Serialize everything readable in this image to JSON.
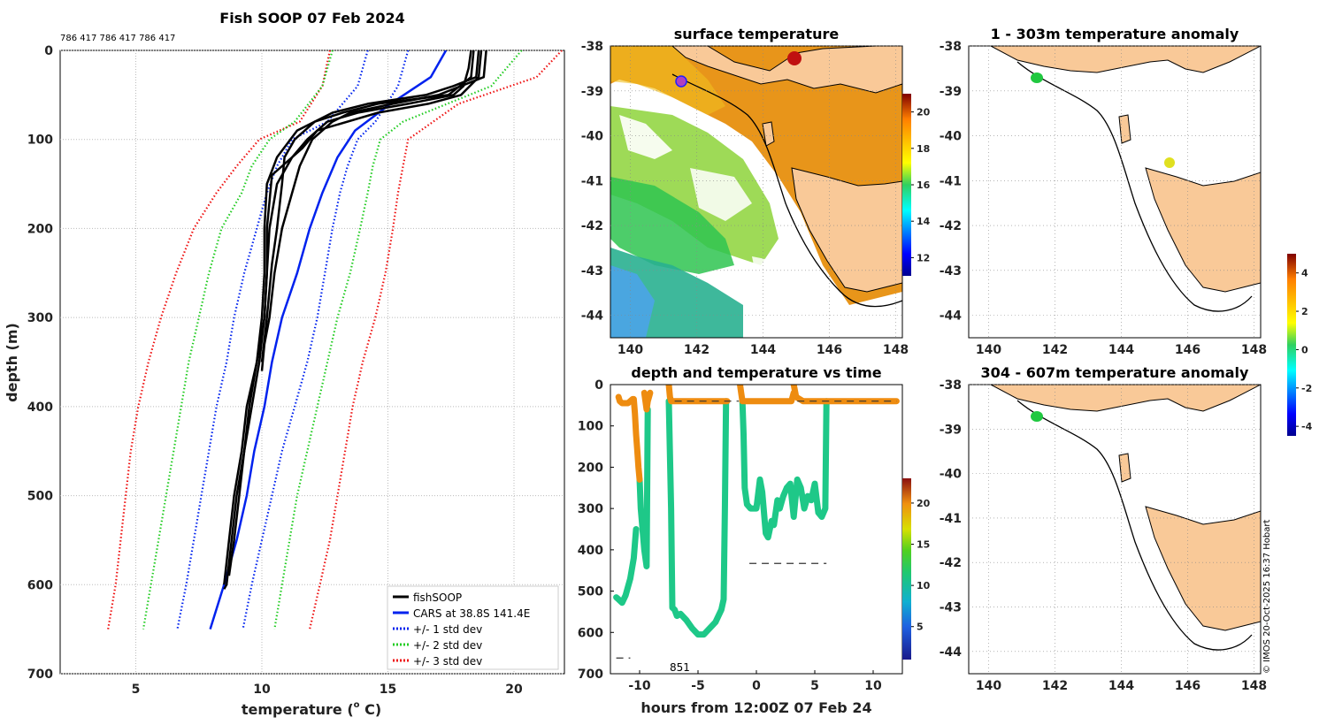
{
  "colors": {
    "fish": "#000000",
    "cars": "#0022ee",
    "std1": "#0022ee",
    "std2": "#22cc22",
    "std3": "#ee1111",
    "land": "#f9c998",
    "warm_sst": "#e8951a",
    "track_orange": "#ee8c10",
    "track_green": "#1ec888"
  },
  "chart_data": [
    {
      "id": "profile",
      "type": "line",
      "title": "Fish SOOP 07 Feb 2024",
      "header_ids": "786 417 786 417 786 417",
      "xlabel": "temperature (",
      "xlabel_sup": "o",
      "xlabel_unit": " C)",
      "ylabel": "depth (m)",
      "xlim": [
        2,
        22
      ],
      "ylim": [
        700,
        0
      ],
      "xticks": [
        "5",
        "10",
        "15",
        "20"
      ],
      "yticks": [
        "0",
        "100",
        "200",
        "300",
        "400",
        "500",
        "600",
        "700"
      ],
      "legend": [
        "fishSOOP",
        "CARS at 38.8S 141.4E",
        "+/- 1 std dev",
        "+/- 2 std dev",
        "+/- 3 std dev"
      ],
      "cars_mean": {
        "d": [
          0,
          30,
          60,
          90,
          120,
          160,
          200,
          250,
          300,
          350,
          400,
          450,
          500,
          550,
          600,
          650
        ],
        "t": [
          17.3,
          16.7,
          15.1,
          13.7,
          13.0,
          12.4,
          11.9,
          11.4,
          10.8,
          10.4,
          10.1,
          9.7,
          9.4,
          9.0,
          8.5,
          7.95
        ]
      },
      "std1_minus": {
        "d": [
          0,
          40,
          80,
          100,
          130,
          160,
          200,
          250,
          300,
          350,
          400,
          450,
          500,
          550,
          600,
          650
        ],
        "t": [
          14.2,
          13.8,
          12.6,
          11.2,
          10.6,
          10.2,
          9.8,
          9.3,
          8.9,
          8.6,
          8.2,
          7.9,
          7.6,
          7.3,
          7.0,
          6.65
        ]
      },
      "std1_plus": {
        "d": [
          0,
          40,
          80,
          100,
          130,
          160,
          200,
          250,
          300,
          350,
          400,
          450,
          500,
          550,
          600,
          650
        ],
        "t": [
          15.8,
          15.4,
          14.5,
          13.8,
          13.4,
          13.1,
          12.8,
          12.5,
          12.2,
          11.8,
          11.3,
          10.8,
          10.4,
          10.0,
          9.6,
          9.25
        ]
      },
      "std2_minus": {
        "d": [
          0,
          40,
          80,
          100,
          130,
          160,
          200,
          250,
          300,
          350,
          400,
          450,
          500,
          550,
          600,
          650
        ],
        "t": [
          12.8,
          12.4,
          11.3,
          10.3,
          9.6,
          9.2,
          8.4,
          7.9,
          7.5,
          7.1,
          6.8,
          6.5,
          6.2,
          5.9,
          5.6,
          5.3
        ]
      },
      "std2_plus": {
        "d": [
          0,
          40,
          80,
          100,
          130,
          160,
          200,
          250,
          300,
          350,
          400,
          450,
          500,
          550,
          600,
          650
        ],
        "t": [
          20.3,
          19.1,
          15.6,
          14.7,
          14.4,
          14.2,
          13.9,
          13.5,
          13.0,
          12.6,
          12.2,
          11.8,
          11.4,
          11.1,
          10.8,
          10.5
        ]
      },
      "std3_minus": {
        "d": [
          0,
          40,
          80,
          100,
          130,
          160,
          200,
          250,
          300,
          350,
          400,
          450,
          500,
          550,
          600,
          650
        ],
        "t": [
          12.7,
          12.4,
          11.5,
          9.9,
          9.0,
          8.2,
          7.3,
          6.6,
          6.0,
          5.5,
          5.1,
          4.8,
          4.6,
          4.4,
          4.2,
          3.9
        ]
      },
      "std3_plus": {
        "d": [
          0,
          30,
          60,
          90,
          100,
          130,
          160,
          200,
          250,
          300,
          350,
          400,
          450,
          500,
          550,
          600,
          650
        ],
        "t": [
          21.9,
          20.9,
          17.8,
          16.3,
          15.8,
          15.6,
          15.4,
          15.2,
          14.9,
          14.5,
          14.0,
          13.6,
          13.3,
          13.0,
          12.7,
          12.3,
          11.9
        ]
      },
      "fish_profiles": [
        {
          "d": [
            0,
            30,
            40,
            50,
            60,
            70,
            90,
            120,
            150,
            200,
            250,
            300,
            350,
            400,
            450,
            500,
            550,
            600,
            605
          ],
          "t": [
            18.6,
            18.5,
            17.6,
            16.5,
            14.2,
            12.8,
            11.4,
            10.6,
            10.2,
            10.1,
            10.1,
            10.0,
            9.8,
            9.5,
            9.3,
            9.0,
            8.8,
            8.6,
            8.5
          ]
        },
        {
          "d": [
            0,
            30,
            50,
            60,
            70,
            80,
            100,
            130,
            160,
            200,
            250,
            300,
            330,
            360
          ],
          "t": [
            18.9,
            18.8,
            17.0,
            15.2,
            13.5,
            12.8,
            12.0,
            11.5,
            11.2,
            10.8,
            10.5,
            10.3,
            10.1,
            10.0
          ]
        },
        {
          "d": [
            0,
            20,
            40,
            50,
            60,
            70,
            80,
            100,
            120,
            150,
            200,
            250,
            300,
            350,
            400,
            450,
            500,
            550,
            600
          ],
          "t": [
            18.3,
            18.2,
            18.0,
            17.6,
            15.8,
            13.8,
            12.6,
            11.8,
            11.2,
            10.6,
            10.3,
            10.2,
            10.1,
            9.8,
            9.4,
            9.2,
            8.9,
            8.7,
            8.5
          ]
        },
        {
          "d": [
            0,
            30,
            50,
            60,
            70,
            90,
            110,
            140,
            170,
            200,
            250,
            300,
            350,
            400,
            450,
            500,
            550,
            590
          ],
          "t": [
            18.7,
            18.6,
            17.9,
            16.6,
            14.6,
            12.2,
            11.6,
            10.4,
            10.3,
            10.2,
            10.2,
            10.1,
            9.9,
            9.6,
            9.3,
            9.1,
            8.9,
            8.7
          ]
        },
        {
          "d": [
            0,
            30,
            50,
            60,
            70,
            80,
            100,
            120,
            150,
            200,
            240,
            300,
            350
          ],
          "t": [
            18.4,
            18.3,
            17.4,
            14.6,
            13.2,
            12.1,
            11.3,
            10.9,
            10.8,
            10.6,
            10.4,
            10.2,
            10.0
          ]
        }
      ]
    },
    {
      "id": "sst_map",
      "type": "heatmap",
      "title": "surface temperature",
      "xlim": [
        139.4,
        148.2
      ],
      "ylim": [
        -44.5,
        -38
      ],
      "xticks": [
        "140",
        "142",
        "144",
        "146",
        "148"
      ],
      "yticks": [
        "-38",
        "-39",
        "-40",
        "-41",
        "-42",
        "-43",
        "-44"
      ],
      "colorbar": {
        "min": 11,
        "max": 21,
        "ticks": [
          "12",
          "14",
          "16",
          "18",
          "20"
        ]
      }
    },
    {
      "id": "depth_time",
      "type": "scatter",
      "title": "depth and temperature vs time",
      "xlabel": "hours from 12:00Z 07 Feb 24",
      "xlim": [
        -12.5,
        12.5
      ],
      "ylim": [
        700,
        0
      ],
      "xticks": [
        "-10",
        "-5",
        "0",
        "5",
        "10"
      ],
      "yticks": [
        "0",
        "100",
        "200",
        "300",
        "400",
        "500",
        "600",
        "700"
      ],
      "annotation": "851",
      "colorbar": {
        "min": 1,
        "max": 23,
        "ticks": [
          "5",
          "10",
          "15",
          "20"
        ]
      },
      "segments": [
        {
          "h": [
            -11.8,
            -11.7,
            -11.5,
            -11.3,
            -11.0,
            -10.8,
            -10.6,
            -10.5,
            -10.4,
            -10.3,
            -10.2,
            -10.1,
            -10.0
          ],
          "d": [
            30,
            40,
            45,
            45,
            45,
            40,
            35,
            35,
            70,
            120,
            160,
            200,
            230
          ]
        },
        {
          "h": [
            -9.6,
            -9.5,
            -9.4,
            -9.3,
            -9.2,
            -9.1
          ],
          "d": [
            20,
            40,
            60,
            40,
            30,
            20
          ]
        },
        {
          "h": [
            -7.5,
            -7.4,
            -7.3,
            -7.0,
            -6.0,
            -5.0,
            -4.0,
            -3.0,
            -2.6,
            -2.5
          ],
          "d": [
            0,
            30,
            40,
            40,
            40,
            40,
            40,
            40,
            40,
            40
          ]
        },
        {
          "h": [
            -1.4,
            -1.3,
            -1.2,
            -1.0,
            -0.5,
            0.0,
            0.5,
            1.0,
            2.0,
            3.0,
            3.2
          ],
          "d": [
            0,
            20,
            40,
            40,
            40,
            40,
            40,
            40,
            40,
            40,
            20
          ]
        },
        {
          "h": [
            3.2,
            3.4,
            4.0,
            5.0,
            6.0,
            7.0,
            8.0,
            9.0,
            10.0,
            11.0,
            12.0
          ],
          "d": [
            0,
            30,
            40,
            40,
            40,
            40,
            40,
            40,
            40,
            40,
            40
          ]
        }
      ],
      "deep_segments": [
        {
          "h": [
            -10.0,
            -9.9,
            -9.6,
            -9.4,
            -9.3
          ],
          "d": [
            230,
            300,
            400,
            440,
            60
          ]
        },
        {
          "h": [
            -12.0,
            -11.8,
            -11.5,
            -11.2,
            -10.8,
            -10.5,
            -10.3
          ],
          "d": [
            515,
            520,
            528,
            510,
            470,
            420,
            350
          ]
        },
        {
          "h": [
            -7.5,
            -7.3,
            -7.2,
            -7.0,
            -6.8,
            -6.5,
            -6.0,
            -5.5,
            -5.0,
            -4.5,
            -4.0,
            -3.5,
            -3.0,
            -2.8,
            -2.7,
            -2.6
          ],
          "d": [
            40,
            300,
            540,
            545,
            560,
            555,
            570,
            590,
            605,
            605,
            590,
            575,
            545,
            520,
            300,
            40
          ]
        },
        {
          "h": [
            -1.2,
            -1.1,
            -1.0,
            -0.8,
            -0.5,
            0.0,
            0.3,
            0.5,
            0.8,
            1.0,
            1.3,
            1.5,
            1.8,
            2.0,
            2.3,
            2.6,
            2.9,
            3.2,
            3.5,
            3.8,
            4.1,
            4.4,
            4.7,
            5.0,
            5.3,
            5.6,
            5.9,
            6.0
          ],
          "d": [
            40,
            120,
            250,
            290,
            300,
            300,
            230,
            260,
            360,
            370,
            330,
            340,
            280,
            300,
            270,
            250,
            240,
            320,
            230,
            250,
            300,
            270,
            280,
            240,
            310,
            320,
            300,
            40
          ]
        }
      ],
      "dashes": [
        {
          "h": [
            -12.0,
            -10.8
          ],
          "d": 662
        },
        {
          "h": [
            -0.6,
            6.0
          ],
          "d": 433
        },
        {
          "h": [
            -7.0,
            -1.5
          ],
          "d": 40
        },
        {
          "h": [
            3.5,
            12.0
          ],
          "d": 40
        }
      ]
    },
    {
      "id": "anom_upper",
      "type": "scatter",
      "title": "1 - 303m temperature anomaly",
      "xticks": [
        "140",
        "142",
        "144",
        "146",
        "148"
      ],
      "yticks": [
        "-38",
        "-39",
        "-40",
        "-41",
        "-42",
        "-43",
        "-44"
      ]
    },
    {
      "id": "anom_lower",
      "type": "scatter",
      "title": "304 - 607m temperature anomaly",
      "xticks": [
        "140",
        "142",
        "144",
        "146",
        "148"
      ],
      "yticks": [
        "-38",
        "-39",
        "-40",
        "-41",
        "-42",
        "-43",
        "-44"
      ]
    }
  ],
  "anomaly_colorbar": {
    "min": -4.5,
    "max": 5,
    "ticks": [
      "4",
      "2",
      "0",
      "-2",
      "-4"
    ]
  },
  "credit": "© IMOS 20-Oct-2025 16:37 Hobart"
}
